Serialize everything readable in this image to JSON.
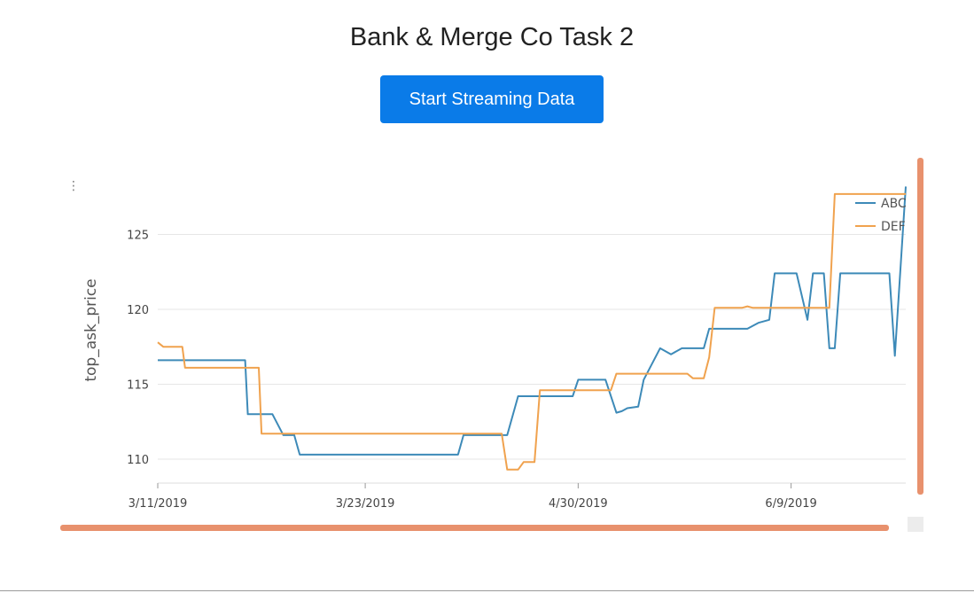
{
  "header": {
    "title": "Bank & Merge Co Task 2",
    "stream_button_label": "Start Streaming Data"
  },
  "chart_menu_icon": "vertical-ellipsis-icon",
  "colors": {
    "button": "#0a7be8",
    "abc": "#3d8ab8",
    "def": "#f0a24e",
    "scrollbar": "#e8916d",
    "grid": "#e6e6e6"
  },
  "chart_data": {
    "type": "line",
    "title": "",
    "xlabel": "",
    "ylabel": "top_ask_price",
    "x_ticks": [
      "3/11/2019",
      "3/23/2019",
      "4/30/2019",
      "6/9/2019"
    ],
    "y_ticks": [
      110,
      115,
      120,
      125
    ],
    "ylim": [
      108.4,
      130.0
    ],
    "grid": "horizontal",
    "legend": "top-right",
    "series": [
      {
        "name": "ABC",
        "points": [
          [
            0,
            116.6
          ],
          [
            4,
            116.6
          ],
          [
            5.5,
            116.6
          ],
          [
            16,
            116.6
          ],
          [
            16.5,
            113.0
          ],
          [
            21,
            113.0
          ],
          [
            23,
            111.6
          ],
          [
            25,
            111.6
          ],
          [
            26,
            110.3
          ],
          [
            32,
            110.3
          ],
          [
            55,
            110.3
          ],
          [
            56,
            111.6
          ],
          [
            62,
            111.6
          ],
          [
            64,
            111.6
          ],
          [
            66,
            114.2
          ],
          [
            72,
            114.2
          ],
          [
            73,
            114.2
          ],
          [
            76,
            114.2
          ],
          [
            77,
            115.3
          ],
          [
            82,
            115.3
          ],
          [
            84,
            113.1
          ],
          [
            85,
            113.2
          ],
          [
            86,
            113.4
          ],
          [
            88,
            113.5
          ],
          [
            89,
            115.3
          ],
          [
            92,
            117.4
          ],
          [
            94,
            117.0
          ],
          [
            96,
            117.4
          ],
          [
            100,
            117.4
          ],
          [
            101,
            118.7
          ],
          [
            107,
            118.7
          ],
          [
            108,
            118.7
          ],
          [
            110,
            119.1
          ],
          [
            112,
            119.3
          ],
          [
            113,
            122.4
          ],
          [
            117,
            122.4
          ],
          [
            119,
            119.3
          ],
          [
            120,
            122.4
          ],
          [
            122,
            122.4
          ],
          [
            123,
            117.4
          ],
          [
            124,
            117.4
          ],
          [
            125,
            122.4
          ],
          [
            134,
            122.4
          ],
          [
            135,
            116.9
          ],
          [
            137,
            128.2
          ]
        ]
      },
      {
        "name": "DEF",
        "points": [
          [
            0,
            117.8
          ],
          [
            1,
            117.5
          ],
          [
            2,
            117.5
          ],
          [
            4.5,
            117.5
          ],
          [
            5,
            116.1
          ],
          [
            16,
            116.1
          ],
          [
            17,
            116.1
          ],
          [
            18.5,
            116.1
          ],
          [
            19,
            111.7
          ],
          [
            36,
            111.7
          ],
          [
            62,
            111.7
          ],
          [
            63,
            111.7
          ],
          [
            64,
            109.3
          ],
          [
            66,
            109.3
          ],
          [
            67,
            109.8
          ],
          [
            69,
            109.8
          ],
          [
            70,
            114.6
          ],
          [
            73,
            114.6
          ],
          [
            74,
            114.6
          ],
          [
            82,
            114.6
          ],
          [
            83,
            114.6
          ],
          [
            84,
            115.7
          ],
          [
            97,
            115.7
          ],
          [
            98,
            115.4
          ],
          [
            100,
            115.4
          ],
          [
            101,
            116.8
          ],
          [
            102,
            120.1
          ],
          [
            107,
            120.1
          ],
          [
            108,
            120.2
          ],
          [
            109,
            120.1
          ],
          [
            111,
            120.1
          ],
          [
            121,
            120.1
          ],
          [
            123,
            120.1
          ],
          [
            124,
            127.7
          ],
          [
            137,
            127.7
          ]
        ]
      }
    ],
    "x_range": [
      0,
      137
    ],
    "x_tick_positions": [
      0,
      38,
      77,
      116
    ]
  }
}
